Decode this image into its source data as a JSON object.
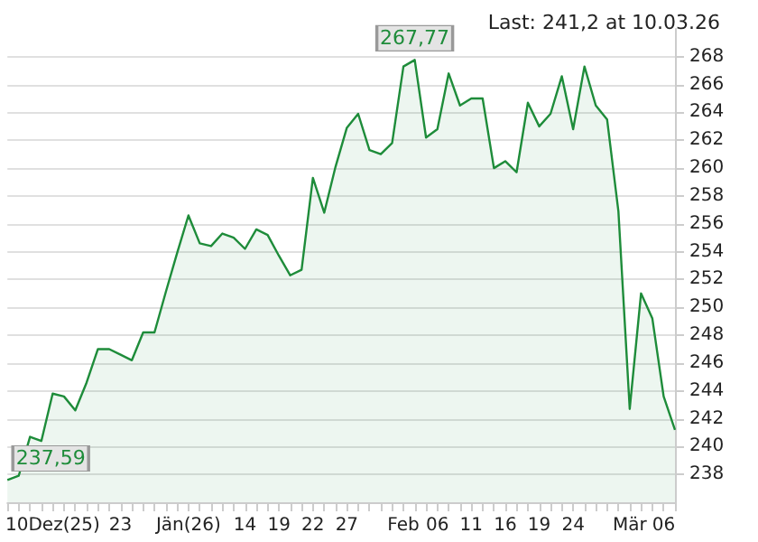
{
  "chart_data": {
    "type": "area",
    "categories": [
      null,
      null,
      null,
      null,
      "10Dez(25)",
      null,
      null,
      null,
      null,
      null,
      "23",
      null,
      null,
      null,
      null,
      null,
      "Jän(26)",
      null,
      null,
      null,
      null,
      "14",
      null,
      null,
      "19",
      null,
      null,
      "22",
      null,
      null,
      "27",
      null,
      null,
      null,
      null,
      "Feb",
      null,
      null,
      "06",
      null,
      null,
      "11",
      null,
      null,
      "16",
      null,
      null,
      "19",
      null,
      null,
      "24",
      null,
      null,
      null,
      null,
      "Mär",
      null,
      null,
      "06",
      null
    ],
    "series": [
      {
        "color": "#1e8c3a",
        "values": [
          237.59,
          237.9,
          240.7,
          240.4,
          243.8,
          243.6,
          242.6,
          244.6,
          247.0,
          247.0,
          246.6,
          246.2,
          248.2,
          248.2,
          251.1,
          253.9,
          256.6,
          254.6,
          254.4,
          255.3,
          255.0,
          254.2,
          255.6,
          255.2,
          253.7,
          252.3,
          252.7,
          259.3,
          256.8,
          260.1,
          262.9,
          263.9,
          261.3,
          261.0,
          261.8,
          267.3,
          267.77,
          262.2,
          262.8,
          266.8,
          264.5,
          265.0,
          265.0,
          260.0,
          260.5,
          259.7,
          264.7,
          263.0,
          263.9,
          266.6,
          262.8,
          267.3,
          264.5,
          263.5,
          256.9,
          242.7,
          251.0,
          249.2,
          243.6,
          241.2
        ]
      }
    ],
    "ylim": [
      236,
      270
    ],
    "yticks": [
      238,
      240,
      242,
      244,
      246,
      248,
      250,
      252,
      254,
      256,
      258,
      260,
      262,
      264,
      266,
      268
    ],
    "grid": "y",
    "marker": "none",
    "line_style": "solid",
    "annotations": [
      "Last: 241,2 at 10.03.26",
      "267,77",
      "237,59"
    ]
  }
}
